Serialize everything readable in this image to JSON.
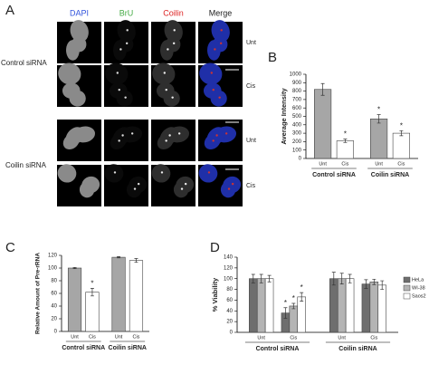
{
  "figure_a": {
    "label": "A",
    "columns": [
      "DAPI",
      "BrU",
      "Coilin",
      "Merge"
    ],
    "row_conditions": [
      "Unt",
      "Cis",
      "Unt",
      "Cis"
    ],
    "groups": [
      "Control siRNA",
      "Coilin siRNA"
    ]
  },
  "chart_data": [
    {
      "type": "bar",
      "panel": "B",
      "y_label": "Average Intensity",
      "ylim": [
        0,
        1000
      ],
      "yticks": [
        0,
        100,
        200,
        300,
        400,
        500,
        600,
        700,
        800,
        900,
        1000
      ],
      "categories": [
        "Unt",
        "Cis",
        "Unt",
        "Cis"
      ],
      "groups": [
        "Control siRNA",
        "Coilin siRNA"
      ],
      "series": [
        {
          "colors": [
            "#a6a6a6",
            "#ffffff",
            "#a6a6a6",
            "#ffffff"
          ],
          "values": [
            820,
            210,
            470,
            300
          ],
          "errors": [
            70,
            20,
            50,
            30
          ]
        }
      ],
      "annotations": [
        {
          "series": 0,
          "index": 1,
          "text": "*"
        },
        {
          "series": 0,
          "index": 2,
          "text": "*"
        },
        {
          "series": 0,
          "index": 3,
          "text": "*"
        }
      ]
    },
    {
      "type": "bar",
      "panel": "C",
      "y_label": "Relative Amount of Pre-rRNA",
      "ylim": [
        0,
        120
      ],
      "yticks": [
        0,
        20,
        40,
        60,
        80,
        100,
        120
      ],
      "categories": [
        "Unt",
        "Cis",
        "Unt",
        "Cis"
      ],
      "groups": [
        "Control siRNA",
        "Coilin siRNA"
      ],
      "series": [
        {
          "colors": [
            "#a6a6a6",
            "#ffffff",
            "#a6a6a6",
            "#ffffff"
          ],
          "values": [
            100,
            62,
            117,
            112
          ],
          "errors": [
            1,
            6,
            1,
            3
          ]
        }
      ],
      "annotations": [
        {
          "series": 0,
          "index": 1,
          "text": "*"
        }
      ]
    },
    {
      "type": "bar",
      "panel": "D",
      "y_label": "% Viability",
      "ylim": [
        0,
        140
      ],
      "yticks": [
        0,
        20,
        40,
        60,
        80,
        100,
        120,
        140
      ],
      "categories": [
        "Unt",
        "Cis",
        "Unt",
        "Cis"
      ],
      "groups": [
        "Control siRNA",
        "Coilin siRNA"
      ],
      "series": [
        {
          "name": "HeLa",
          "color": "#6e6e6e",
          "values": [
            100,
            36,
            100,
            90
          ],
          "errors": [
            8,
            10,
            12,
            8
          ]
        },
        {
          "name": "WI-38",
          "color": "#b4b4b4",
          "values": [
            100,
            49,
            100,
            94
          ],
          "errors": [
            8,
            5,
            10,
            5
          ]
        },
        {
          "name": "Saos2",
          "color": "#ffffff",
          "values": [
            100,
            66,
            100,
            88
          ],
          "errors": [
            6,
            8,
            8,
            8
          ]
        }
      ],
      "annotations": [
        {
          "series": 0,
          "index": 1,
          "text": "*"
        },
        {
          "series": 1,
          "index": 1,
          "text": "*"
        },
        {
          "series": 2,
          "index": 1,
          "text": "*"
        }
      ],
      "legend": "right"
    }
  ]
}
